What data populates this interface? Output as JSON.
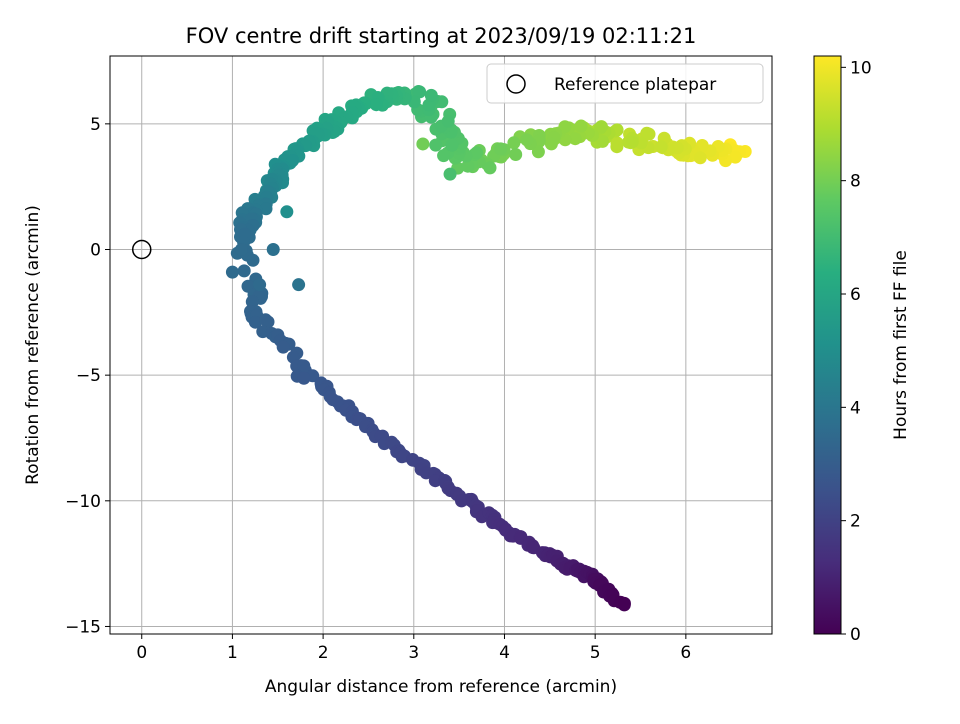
{
  "chart_data": {
    "type": "scatter",
    "title": "FOV centre drift starting at 2023/09/19 02:11:21",
    "xlabel": "Angular distance from reference (arcmin)",
    "ylabel": "Rotation from reference (arcmin)",
    "xlim": [
      -0.35,
      6.95
    ],
    "ylim": [
      -15.3,
      7.7
    ],
    "x_ticks": [
      0,
      1,
      2,
      3,
      4,
      5,
      6
    ],
    "y_ticks": [
      -15,
      -10,
      -5,
      0,
      5
    ],
    "grid": true,
    "legend": {
      "position": "top-right",
      "entries": [
        "Reference platepar"
      ]
    },
    "reference_point": {
      "x": 0,
      "y": 0,
      "label": "Reference platepar"
    },
    "colorbar": {
      "label": "Hours from first FF file",
      "colormap": "viridis",
      "range": [
        0,
        10.2
      ],
      "ticks": [
        0,
        2,
        4,
        6,
        8,
        10
      ]
    },
    "series": [
      {
        "path": [
          [
            0.0,
            5.33,
            -14.2
          ],
          [
            0.25,
            5.05,
            -13.3
          ],
          [
            0.55,
            4.9,
            -12.9
          ],
          [
            0.8,
            4.7,
            -12.6
          ],
          [
            1.0,
            4.5,
            -12.2
          ],
          [
            1.35,
            4.0,
            -11.1
          ],
          [
            1.7,
            3.6,
            -10.0
          ],
          [
            2.05,
            3.1,
            -8.7
          ],
          [
            2.4,
            2.55,
            -7.2
          ],
          [
            2.7,
            2.1,
            -5.8
          ],
          [
            2.9,
            1.75,
            -4.8
          ],
          [
            3.05,
            1.55,
            -3.8
          ],
          [
            3.2,
            1.3,
            -2.8
          ],
          [
            3.35,
            1.25,
            -2.0
          ],
          [
            3.5,
            1.25,
            -1.2
          ],
          [
            3.55,
            1.1,
            -0.2
          ],
          [
            3.65,
            1.15,
            0.5
          ],
          [
            3.9,
            1.15,
            1.2
          ],
          [
            4.2,
            1.3,
            1.6
          ],
          [
            4.5,
            1.35,
            2.2
          ],
          [
            4.8,
            1.45,
            2.8
          ],
          [
            5.2,
            1.6,
            3.5
          ],
          [
            5.6,
            1.8,
            4.2
          ],
          [
            6.0,
            2.1,
            5.0
          ],
          [
            6.4,
            2.45,
            5.8
          ],
          [
            6.7,
            2.8,
            6.2
          ],
          [
            6.9,
            3.05,
            6.1
          ],
          [
            7.1,
            3.25,
            5.5
          ],
          [
            7.3,
            3.3,
            4.6
          ],
          [
            7.5,
            3.4,
            3.8
          ],
          [
            7.8,
            3.7,
            3.5
          ],
          [
            8.1,
            4.1,
            4.0
          ],
          [
            8.4,
            4.5,
            4.6
          ],
          [
            8.8,
            4.95,
            4.6
          ],
          [
            9.2,
            5.4,
            4.4
          ],
          [
            9.6,
            5.9,
            4.0
          ],
          [
            10.0,
            6.3,
            3.8
          ],
          [
            10.2,
            6.65,
            3.9
          ]
        ],
        "outliers": [
          [
            3.9,
            1.73,
            -1.4
          ],
          [
            3.8,
            1.45,
            0.0
          ],
          [
            3.6,
            1.1,
            0.0
          ],
          [
            3.55,
            1.0,
            -0.9
          ],
          [
            3.55,
            1.3,
            -1.4
          ],
          [
            5.1,
            1.6,
            1.5
          ],
          [
            8.0,
            3.1,
            4.2
          ],
          [
            7.2,
            3.4,
            3.0
          ]
        ]
      }
    ]
  }
}
